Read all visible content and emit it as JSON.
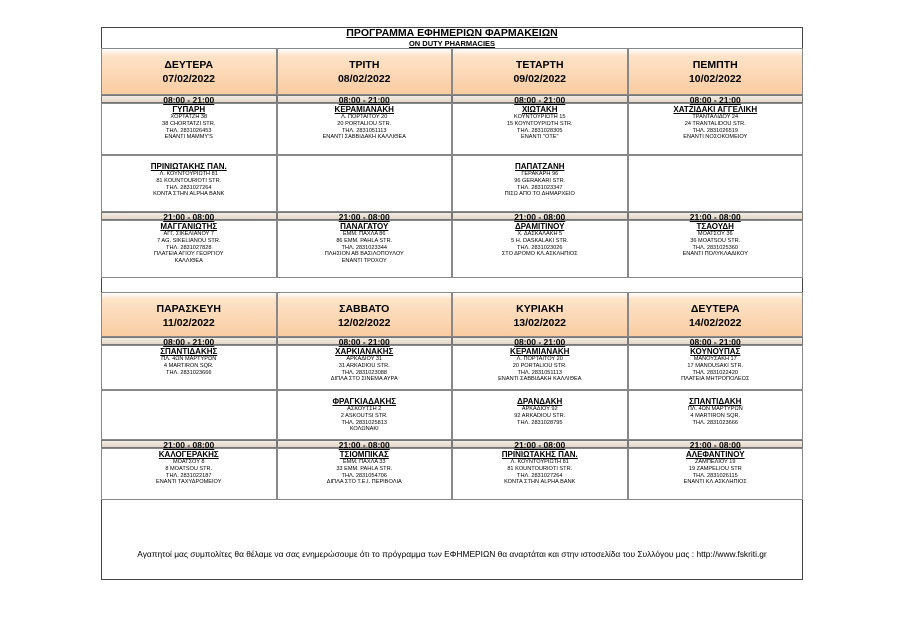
{
  "header": {
    "title": "ΠΡΟΓΡΑΜΜΑ ΕΦΗΜΕΡΙΩΝ ΦΑΡΜΑΚΕΙΩΝ",
    "subtitle": "ON DUTY PHARMACIES"
  },
  "weeks": [
    {
      "days": [
        {
          "day": "ΔΕΥΤΕΡΑ",
          "date": "07/02/2022",
          "day_label": "08:00 - 21:00",
          "day_pharmacies": [
            {
              "name": "ΓΥΠΑΡΗ",
              "lines": [
                "ΧΟΡΤΑΤΖΗ 38",
                "38 CHORTATZI STR.",
                "ΤΗΛ. 2831026453",
                "ΕΝΑΝΤΙ MAMMY'S"
              ]
            },
            {
              "name": "ΠΡΙΝΙΩΤΑΚΗΣ ΠΑΝ.",
              "lines": [
                "Λ. ΚΟΥΝΤΟΥΡΙΩΤΗ 81",
                "81 KOUNTOURIOTI STR.",
                "ΤΗΛ. 2831027264",
                "ΚΟΝΤΑ ΣΤΗΝ ALPHA BANK"
              ]
            }
          ],
          "night_label": "21:00 - 08:00",
          "night_pharmacies": [
            {
              "name": "ΜΑΓΓΑΝΙΩΤΗΣ",
              "lines": [
                "ΑΓΓ. ΣΙΚΕΛΙΑΝΟΥ 7",
                "7 AG. SIKELIANOU STR.",
                "ΤΗΛ. 2831027828",
                "ΠΛΑΤΕΙΑ ΑΓΙΟΥ ΓΕΩΡΓΙΟΥ",
                "ΚΑΛΛΙΘΕΑ"
              ]
            }
          ]
        },
        {
          "day": "ΤΡΙΤΗ",
          "date": "08/02/2022",
          "day_label": "08:00 - 21:00",
          "day_pharmacies": [
            {
              "name": "ΚΕΡΑΜΙΑΝΑΚΗ",
              "lines": [
                "Λ. ΠΟΡΤΑΙΤΟΥ 20",
                "20 PORTALIOU STR.",
                "ΤΗΛ. 2831051113",
                "ΕΝΑΝΤΙ ΣΑΒΒΙΔΑΚΗ ΚΑΛΛΙΘΕΑ"
              ]
            }
          ],
          "night_label": "21:00 - 08:00",
          "night_pharmacies": [
            {
              "name": "ΠΑΝΑΓΑΤΟΥ",
              "lines": [
                "ΕΜΜ. ΠΑΧΛΑ 86",
                "86 EMM. PAHLA STR.",
                "ΤΗΛ. 2831023344",
                "ΠΛΗΣΙΟΝ ΑΒ ΒΑΣΙΛΟΠΟΥΛΟΥ",
                "ΕΝΑΝΤΙ ΤΡΟΧΟΥ"
              ]
            }
          ]
        },
        {
          "day": "ΤΕΤΑΡΤΗ",
          "date": "09/02/2022",
          "day_label": "08:00 - 21:00",
          "day_pharmacies": [
            {
              "name": "ΧΙΩΤΑΚΗ",
              "lines": [
                "ΚΟΥΝΤΟΥΡΙΩΤΗ 15",
                "15 ΚΟΥΝΤΟΥΡΙΩΤΗ STR.",
                "ΤΗΛ. 2831028305",
                "ΕΝΑΝΤΙ \"ΟΤΕ\""
              ]
            },
            {
              "name": "ΠΑΠΑΤΖΑΝΗ",
              "lines": [
                "ΓΕΡΑΚΑΡΗ 96",
                "96 GERAKARI STR.",
                "ΤΗΛ. 2831023347",
                "ΠΙΣΩ ΑΠΟ ΤΟ ΔΗΜΑΡΧΕΙΟ"
              ]
            }
          ],
          "night_label": "21:00 - 08:00",
          "night_pharmacies": [
            {
              "name": "ΔΡΑΜΙΤΙΝΟΥ",
              "lines": [
                "Χ. ΔΑΣΚΑΛΑΚΗ 5",
                "5 H. DASKALAKI STR.",
                "ΤΗΛ. 2831023026",
                "ΣΤΟ ΔΡΟΜΟ ΚΛ.ΑΣΚΛΗΠΙΟΣ"
              ]
            }
          ]
        },
        {
          "day": "ΠΕΜΠΤΗ",
          "date": "10/02/2022",
          "day_label": "08:00 - 21:00",
          "day_pharmacies": [
            {
              "name": "ΧΑΤΖΙΔΑΚΙ ΑΓΓΕΛΙΚΗ",
              "lines": [
                "ΤΡΑΝΤΑΛΙΔΟΥ 24",
                "24 TRANTALIDOU STR.",
                "ΤΗΛ. 2831026519",
                "ΕΝΑΝΤΙ ΝΟΣΟΚΟΜΕΙΟΥ"
              ]
            }
          ],
          "night_label": "21:00 - 08:00",
          "night_pharmacies": [
            {
              "name": "ΤΣΑΟΥΔΗ",
              "lines": [
                "ΜΟΑΤΣΟΥ 36",
                "36 MOATSOU STR.",
                "ΤΗΛ. 2831025360",
                "ΕΝΑΝΤΙ ΠΟΛΥΚΛΑΔΙΚΟΥ"
              ]
            }
          ]
        }
      ]
    },
    {
      "days": [
        {
          "day": "ΠΑΡΑΣΚΕΥΗ",
          "date": "11/02/2022",
          "day_label": "08:00 - 21:00",
          "day_pharmacies": [
            {
              "name": "ΣΠΑΝΤΙΔΑΚΗΣ",
              "lines": [
                "ΠΛ. 4ΩΝ ΜΑΡΤΥΡΩΝ",
                "4 MARTIRON SQR.",
                "ΤΗΛ. 2831023666"
              ]
            }
          ],
          "night_label": "21:00 - 08:00",
          "night_pharmacies": [
            {
              "name": "ΚΑΛΟΓΕΡΑΚΗΣ",
              "lines": [
                "ΜΟΑΤΣΟΥ 8",
                "8 MOATSOU STR.",
                "ΤΗΛ. 2831022187",
                "ΕΝΑΝΤΙ ΤΑΧΥΔΡΟΜΕΙΟΥ"
              ]
            }
          ]
        },
        {
          "day": "ΣΑΒΒΑΤΟ",
          "date": "12/02/2022",
          "day_label": "08:00 - 21:00",
          "day_pharmacies": [
            {
              "name": "ΧΑΡΚΙΑΝΑΚΗΣ",
              "lines": [
                "ΑΡΚΑΔΙΟΥ 31",
                "31 ARKADIOU STR.",
                "ΤΗΛ. 2831023088",
                "ΔΙΠΛΑ ΣΤΟ ΣΙΝΕΜΑ ΑΥΡΑ"
              ]
            },
            {
              "name": "ΦΡΑΓΚΙΑΔΑΚΗΣ",
              "lines": [
                "ΑΣΚΟΥΤΣΗ 2",
                "2 ASKOUTSI STR.",
                "ΤΗΛ. 2831025813",
                "ΚΟΛΩΝΑΚΙ"
              ]
            }
          ],
          "night_label": "21:00 - 08:00",
          "night_pharmacies": [
            {
              "name": "ΤΣΙΟΜΠΙΚΑΣ",
              "lines": [
                "ΕΜΜ. ΠΑΧΛΑ 33",
                "33 EMM. PAHLA STR.",
                "ΤΗΛ. 2831054706",
                "ΔΙΠΛΑ ΣΤΟ Τ.Ε.Ι. ΠΕΡΙΒΟΛΙΑ"
              ]
            }
          ]
        },
        {
          "day": "ΚΥΡΙΑΚΗ",
          "date": "13/02/2022",
          "day_label": "08:00 - 21:00",
          "day_pharmacies": [
            {
              "name": "ΚΕΡΑΜΙΑΝΑΚΗ",
              "lines": [
                "Λ. ΠΟΡΤΑΙΤΟΥ 20",
                "20 PORTALIOU STR.",
                "ΤΗΛ. 2831051113",
                "ΕΝΑΝΤΙ ΣΑΒΒΙΔΑΚΗ ΚΑΛΛΙΘΕΑ"
              ]
            },
            {
              "name": "ΔΡΑΝΔΑΚΗ",
              "lines": [
                "ΑΡΚΑΔΙΟΥ 92",
                "92 ARKADIOU STR.",
                "ΤΗΛ. 2831028795"
              ]
            }
          ],
          "night_label": "21:00 - 08:00",
          "night_pharmacies": [
            {
              "name": "ΠΡΙΝΙΩΤΑΚΗΣ ΠΑΝ.",
              "lines": [
                "Λ. ΚΟΥΝΤΟΥΡΙΩΤΗ 81",
                "81 KOUNTOURIOTI STR.",
                "ΤΗΛ. 2831027264",
                "ΚΟΝΤΑ ΣΤΗΝ ALPHA BANK"
              ]
            }
          ]
        },
        {
          "day": "ΔΕΥΤΕΡΑ",
          "date": "14/02/2022",
          "day_label": "08:00 - 21:00",
          "day_pharmacies": [
            {
              "name": "ΚΟΥΝΟΥΠΑΣ",
              "lines": [
                "ΜΑΝΟΥΣΑΚΗ 17",
                "17 MANOUSAKI STR.",
                "ΤΗΛ. 2831022420",
                "ΠΛΑΤΕΙΑ ΜΗΤΡΟΠΟΛΕΩΣ"
              ]
            },
            {
              "name": "ΣΠΑΝΤΙΔΑΚΗ",
              "lines": [
                "ΠΛ. 4ΩΝ ΜΑΡΤΥΡΩΝ",
                "4 MARTIRON SQR.",
                "ΤΗΛ. 2831023666"
              ]
            }
          ],
          "night_label": "21:00 - 08:00",
          "night_pharmacies": [
            {
              "name": "ΑΛΕΦΑΝΤΙΝΟΥ",
              "lines": [
                "ΖΑΜΠΕΛΙΟΥ 19",
                "19 ZAMPELIOU STR",
                "ΤΗΛ. 2831026115",
                "ΕΝΑΝΤΙ ΚΛ.ΑΣΚΛΗΠΙΟΣ"
              ]
            }
          ]
        }
      ]
    }
  ],
  "footer": "Αγαπητοί μας συμπολίτες θα θέλαμε να σας ενημερώσουμε ότι το πρόγραμμα των ΕΦΗΜΕΡΙΩΝ θα αναρτάται και στην ιστοσελίδα του Συλλόγου μας :  http://www.fskriti.gr"
}
